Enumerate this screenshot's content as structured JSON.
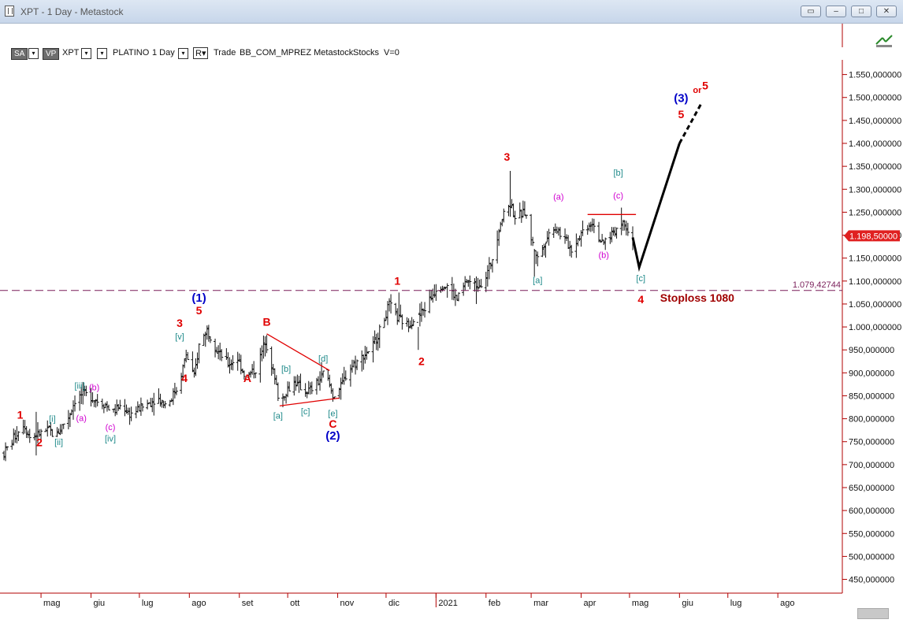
{
  "window": {
    "title": "XPT - 1 Day - Metastock",
    "buttons": [
      "restore-icon",
      "minimize-icon",
      "maximize-icon",
      "close-icon"
    ]
  },
  "toolbar": {
    "sa": "SA",
    "vp": "VP",
    "symbol": "XPT",
    "name": "PLATINO",
    "period": "1 Day",
    "r": "R",
    "trade": "Trade",
    "info": "BB_COM_MPREZ Metastock",
    "stocks": "Stocks",
    "v": "V=0"
  },
  "colors": {
    "axis": "#b00000",
    "bars": "#111111",
    "red": "#e00000",
    "blue": "#0000c8",
    "teal": "#1f8a8a",
    "magenta": "#d000d0",
    "stoploss_line": "#7a1f5a",
    "price_tag": "#e02020"
  },
  "chart_data": {
    "type": "ohlc",
    "title": "",
    "xlabel": "",
    "ylabel": "",
    "ylim": [
      420000,
      1630000
    ],
    "y_ticks": [
      450000,
      500000,
      550000,
      600000,
      650000,
      700000,
      750000,
      800000,
      850000,
      900000,
      950000,
      1000000,
      1050000,
      1100000,
      1150000,
      1200000,
      1250000,
      1300000,
      1350000,
      1400000,
      1450000,
      1500000,
      1550000
    ],
    "y_tick_labels": [
      "450,000000",
      "500,000000",
      "550,000000",
      "600,000000",
      "650,000000",
      "700,000000",
      "750,000000",
      "800,000000",
      "850,000000",
      "900,000000",
      "950,000000",
      "1.000,000000",
      "1.050,000000",
      "1.100,000000",
      "1.150,000000",
      "1.200,000000",
      "1.250,000000",
      "1.300,000000",
      "1.350,000000",
      "1.400,000000",
      "1.450,000000",
      "1.500,000000",
      "1.550,000000"
    ],
    "x_range": [
      "2020-04-08",
      "2021-09-10"
    ],
    "x_ticks": [
      {
        "date": "2020-05-01",
        "label": "mag"
      },
      {
        "date": "2020-06-01",
        "label": "giu"
      },
      {
        "date": "2020-07-01",
        "label": "lug"
      },
      {
        "date": "2020-08-01",
        "label": "ago"
      },
      {
        "date": "2020-09-01",
        "label": "set"
      },
      {
        "date": "2020-10-01",
        "label": "ott"
      },
      {
        "date": "2020-11-01",
        "label": "nov"
      },
      {
        "date": "2020-12-01",
        "label": "dic"
      },
      {
        "date": "2021-01-01",
        "label": "2021"
      },
      {
        "date": "2021-02-01",
        "label": "feb"
      },
      {
        "date": "2021-03-01",
        "label": "mar"
      },
      {
        "date": "2021-04-01",
        "label": "apr"
      },
      {
        "date": "2021-05-01",
        "label": "mag"
      },
      {
        "date": "2021-06-01",
        "label": "giu"
      },
      {
        "date": "2021-07-01",
        "label": "lug"
      },
      {
        "date": "2021-08-01",
        "label": "ago"
      }
    ],
    "price_path": [
      [
        "2020-04-08",
        725000
      ],
      [
        "2020-04-20",
        790000
      ],
      [
        "2020-04-24",
        760000
      ],
      [
        "2020-05-06",
        775000
      ],
      [
        "2020-05-10",
        760000
      ],
      [
        "2020-05-14",
        785000
      ],
      [
        "2020-05-18",
        805000
      ],
      [
        "2020-05-22",
        840000
      ],
      [
        "2020-05-27",
        855000
      ],
      [
        "2020-06-02",
        845000
      ],
      [
        "2020-06-10",
        830000
      ],
      [
        "2020-06-15",
        815000
      ],
      [
        "2020-06-20",
        830000
      ],
      [
        "2020-06-25",
        810000
      ],
      [
        "2020-07-05",
        830000
      ],
      [
        "2020-07-12",
        845000
      ],
      [
        "2020-07-18",
        830000
      ],
      [
        "2020-07-25",
        870000
      ],
      [
        "2020-07-30",
        940000
      ],
      [
        "2020-08-04",
        890000
      ],
      [
        "2020-08-07",
        960000
      ],
      [
        "2020-08-12",
        995000
      ],
      [
        "2020-08-18",
        950000
      ],
      [
        "2020-08-25",
        920000
      ],
      [
        "2020-08-31",
        930000
      ],
      [
        "2020-09-05",
        890000
      ],
      [
        "2020-09-12",
        910000
      ],
      [
        "2020-09-17",
        970000
      ],
      [
        "2020-09-20",
        935000
      ],
      [
        "2020-09-26",
        835000
      ],
      [
        "2020-09-30",
        860000
      ],
      [
        "2020-10-05",
        880000
      ],
      [
        "2020-10-12",
        860000
      ],
      [
        "2020-10-16",
        865000
      ],
      [
        "2020-10-20",
        880000
      ],
      [
        "2020-10-24",
        905000
      ],
      [
        "2020-10-29",
        850000
      ],
      [
        "2020-11-03",
        870000
      ],
      [
        "2020-11-08",
        910000
      ],
      [
        "2020-11-15",
        930000
      ],
      [
        "2020-11-23",
        960000
      ],
      [
        "2020-11-28",
        1000000
      ],
      [
        "2020-12-03",
        1050000
      ],
      [
        "2020-12-08",
        1020000
      ],
      [
        "2020-12-14",
        1005000
      ],
      [
        "2020-12-20",
        1020000
      ],
      [
        "2020-12-25",
        1040000
      ],
      [
        "2021-01-02",
        1090000
      ],
      [
        "2021-01-08",
        1090000
      ],
      [
        "2021-01-14",
        1060000
      ],
      [
        "2021-01-20",
        1100000
      ],
      [
        "2021-01-26",
        1090000
      ],
      [
        "2021-01-31",
        1100000
      ],
      [
        "2021-02-05",
        1150000
      ],
      [
        "2021-02-10",
        1230000
      ],
      [
        "2021-02-16",
        1270000
      ],
      [
        "2021-02-19",
        1240000
      ],
      [
        "2021-02-25",
        1250000
      ],
      [
        "2021-03-02",
        1180000
      ],
      [
        "2021-03-05",
        1150000
      ],
      [
        "2021-03-10",
        1190000
      ],
      [
        "2021-03-15",
        1220000
      ],
      [
        "2021-03-20",
        1200000
      ],
      [
        "2021-03-26",
        1170000
      ],
      [
        "2021-04-02",
        1210000
      ],
      [
        "2021-04-08",
        1230000
      ],
      [
        "2021-04-14",
        1180000
      ],
      [
        "2021-04-19",
        1200000
      ],
      [
        "2021-04-23",
        1215000
      ],
      [
        "2021-04-28",
        1230000
      ],
      [
        "2021-05-03",
        1190000
      ]
    ],
    "extremes": [
      {
        "date": "2020-04-28",
        "high": 815000,
        "low": 720000
      },
      {
        "date": "2020-08-08",
        "high": 1010000,
        "low": 925000
      },
      {
        "date": "2020-09-28",
        "high": 855000,
        "low": 825000
      },
      {
        "date": "2020-11-01",
        "high": 870000,
        "low": 840000
      },
      {
        "date": "2020-12-09",
        "high": 1075000,
        "low": 1010000
      },
      {
        "date": "2020-12-21",
        "high": 1000000,
        "low": 950000
      },
      {
        "date": "2021-01-26",
        "high": 1110000,
        "low": 1050000
      },
      {
        "date": "2021-02-16",
        "high": 1340000,
        "low": 1240000
      },
      {
        "date": "2021-03-03",
        "high": 1170000,
        "low": 1110000
      },
      {
        "date": "2021-04-26",
        "high": 1260000,
        "low": 1200000
      }
    ],
    "last_price_label": "1.198,50000",
    "last_price": 1198500,
    "stoploss_level": 1079427.44,
    "stoploss_label": "1.079,42744",
    "projection": {
      "solid": [
        [
          "2021-05-03",
          1195000
        ],
        [
          "2021-05-07",
          1130000
        ],
        [
          "2021-06-01",
          1400000
        ]
      ],
      "dashed": [
        [
          "2021-06-01",
          1400000
        ],
        [
          "2021-06-15",
          1490000
        ]
      ]
    },
    "trendlines": [
      {
        "from": [
          "2020-09-18",
          985000
        ],
        "to": [
          "2020-10-27",
          905000
        ],
        "color": "red"
      },
      {
        "from": [
          "2020-09-26",
          828000
        ],
        "to": [
          "2020-11-02",
          845000
        ],
        "color": "red"
      },
      {
        "from": [
          "2021-04-05",
          1245000
        ],
        "to": [
          "2021-05-05",
          1245000
        ],
        "color": "red"
      }
    ],
    "wave_labels": [
      {
        "text": "1",
        "date": "2020-04-18",
        "price": 800000,
        "color": "red"
      },
      {
        "text": "2",
        "date": "2020-04-30",
        "price": 740000,
        "color": "red"
      },
      {
        "text": "[i]",
        "date": "2020-05-08",
        "price": 793000,
        "color": "teal"
      },
      {
        "text": "[ii]",
        "date": "2020-05-12",
        "price": 743000,
        "color": "teal"
      },
      {
        "text": "[iii]",
        "date": "2020-05-25",
        "price": 865000,
        "color": "teal"
      },
      {
        "text": "(a)",
        "date": "2020-05-26",
        "price": 795000,
        "color": "magenta"
      },
      {
        "text": "(b)",
        "date": "2020-06-03",
        "price": 862000,
        "color": "magenta"
      },
      {
        "text": "(c)",
        "date": "2020-06-13",
        "price": 775000,
        "color": "magenta"
      },
      {
        "text": "[iv]",
        "date": "2020-06-13",
        "price": 750000,
        "color": "teal"
      },
      {
        "text": "3",
        "date": "2020-07-26",
        "price": 1000000,
        "color": "red"
      },
      {
        "text": "[v]",
        "date": "2020-07-26",
        "price": 973000,
        "color": "teal"
      },
      {
        "text": "4",
        "date": "2020-07-29",
        "price": 880000,
        "color": "red"
      },
      {
        "text": "(1)",
        "date": "2020-08-07",
        "price": 1055000,
        "color": "blue"
      },
      {
        "text": "5",
        "date": "2020-08-07",
        "price": 1028000,
        "color": "red"
      },
      {
        "text": "A",
        "date": "2020-09-06",
        "price": 880000,
        "color": "red"
      },
      {
        "text": "B",
        "date": "2020-09-18",
        "price": 1003000,
        "color": "red"
      },
      {
        "text": "[b]",
        "date": "2020-09-30",
        "price": 902000,
        "color": "teal"
      },
      {
        "text": "[a]",
        "date": "2020-09-25",
        "price": 800000,
        "color": "teal"
      },
      {
        "text": "[c]",
        "date": "2020-10-12",
        "price": 810000,
        "color": "teal"
      },
      {
        "text": "[d]",
        "date": "2020-10-23",
        "price": 925000,
        "color": "teal"
      },
      {
        "text": "[e]",
        "date": "2020-10-29",
        "price": 805000,
        "color": "teal"
      },
      {
        "text": "C",
        "date": "2020-10-29",
        "price": 780000,
        "color": "red"
      },
      {
        "text": "(2)",
        "date": "2020-10-29",
        "price": 755000,
        "color": "blue"
      },
      {
        "text": "1",
        "date": "2020-12-08",
        "price": 1092000,
        "color": "red"
      },
      {
        "text": "2",
        "date": "2020-12-23",
        "price": 917000,
        "color": "red"
      },
      {
        "text": "3",
        "date": "2021-02-14",
        "price": 1362000,
        "color": "red"
      },
      {
        "text": "[a]",
        "date": "2021-03-05",
        "price": 1095000,
        "color": "teal"
      },
      {
        "text": "(a)",
        "date": "2021-03-18",
        "price": 1277000,
        "color": "magenta"
      },
      {
        "text": "(b)",
        "date": "2021-04-15",
        "price": 1150000,
        "color": "magenta"
      },
      {
        "text": "[b]",
        "date": "2021-04-24",
        "price": 1330000,
        "color": "teal"
      },
      {
        "text": "(c)",
        "date": "2021-04-24",
        "price": 1280000,
        "color": "magenta"
      },
      {
        "text": "[c]",
        "date": "2021-05-08",
        "price": 1100000,
        "color": "teal"
      },
      {
        "text": "4",
        "date": "2021-05-08",
        "price": 1052000,
        "color": "red"
      },
      {
        "text": "(3)",
        "date": "2021-06-02",
        "price": 1490000,
        "color": "blue"
      },
      {
        "text": "5",
        "date": "2021-06-02",
        "price": 1455000,
        "color": "red"
      },
      {
        "text": "or",
        "date": "2021-06-12",
        "price": 1510000,
        "color": "red"
      },
      {
        "text": "5",
        "date": "2021-06-17",
        "price": 1518000,
        "color": "red"
      }
    ],
    "annotations": [
      {
        "text": "Stoploss 1080",
        "date": "2021-05-20",
        "price": 1055000,
        "color": "darkred"
      }
    ]
  }
}
